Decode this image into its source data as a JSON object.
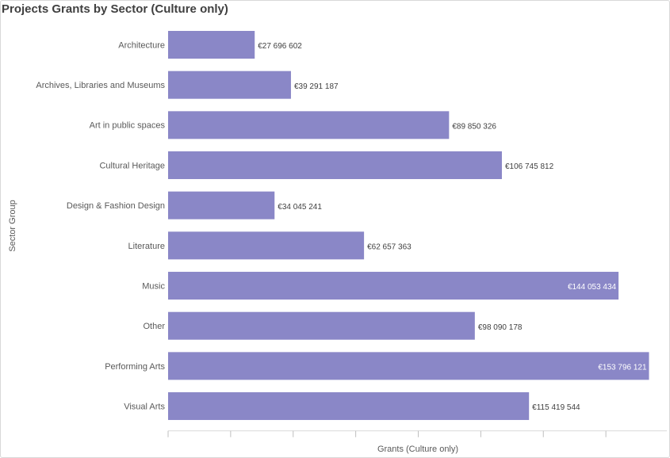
{
  "chart_data": {
    "type": "bar",
    "orientation": "horizontal",
    "title": "Projects Grants by Sector (Culture only)",
    "xlabel": "Grants (Culture only)",
    "ylabel": "Sector Group",
    "bar_color": "#8a87c7",
    "categories": [
      "Architecture",
      "Archives, Libraries and Museums",
      "Art in public spaces",
      "Cultural Heritage",
      "Design & Fashion Design",
      "Literature",
      "Music",
      "Other",
      "Performing Arts",
      "Visual Arts"
    ],
    "values": [
      27696602,
      39291187,
      89850326,
      106745812,
      34045241,
      62657363,
      144053434,
      98090178,
      153796121,
      115419544
    ],
    "value_labels": [
      "€27 696 602",
      "€39 291 187",
      "€89 850 326",
      "€106 745 812",
      "€34 045 241",
      "€62 657 363",
      "€144 053 434",
      "€98 090 178",
      "€153 796 121",
      "€115 419 544"
    ],
    "xlim": [
      0,
      160000000
    ],
    "grid": false
  }
}
